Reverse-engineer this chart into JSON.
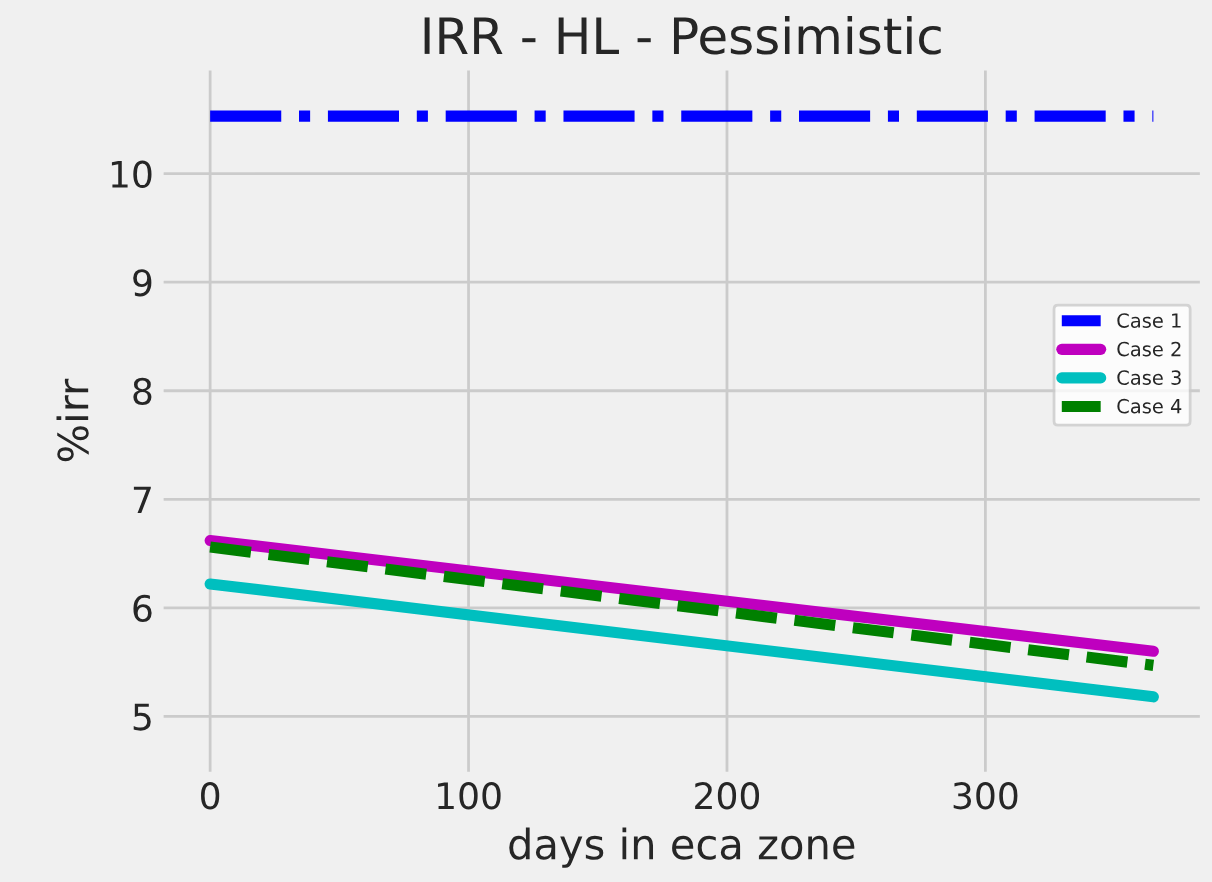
{
  "chart_data": {
    "type": "line",
    "title": "IRR - HL - Pessimistic",
    "xlabel": "days in eca zone",
    "ylabel": "%irr",
    "x": [
      0,
      365
    ],
    "series": [
      {
        "name": "Case 1",
        "color": "#0000ff",
        "values": [
          10.53,
          10.53
        ],
        "line_style": "dashdot"
      },
      {
        "name": "Case 2",
        "color": "#bf00bf",
        "values": [
          6.62,
          5.6
        ],
        "line_style": "solid"
      },
      {
        "name": "Case 3",
        "color": "#00bfbf",
        "values": [
          6.22,
          5.18
        ],
        "line_style": "solid"
      },
      {
        "name": "Case 4",
        "color": "#008000",
        "values": [
          6.56,
          5.47
        ],
        "line_style": "dashed"
      }
    ],
    "xlim": [
      -18,
      383
    ],
    "ylim": [
      4.49,
      10.95
    ],
    "xticks": [
      0,
      100,
      200,
      300
    ],
    "yticks": [
      5,
      6,
      7,
      8,
      9,
      10
    ],
    "grid": true,
    "legend": "right",
    "marker": "none"
  }
}
